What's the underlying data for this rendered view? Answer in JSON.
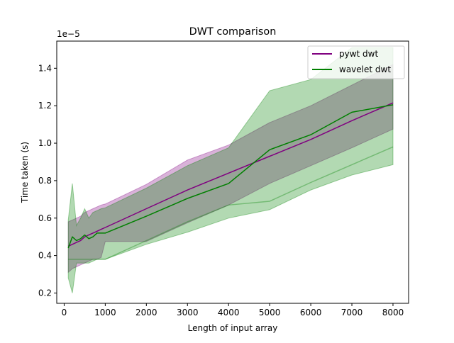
{
  "chart_data": {
    "type": "line",
    "title": "DWT comparison",
    "xlabel": "Length of input array",
    "ylabel": "Time taken (s)",
    "y_offset_label": "1e−5",
    "y_scale": 1e-05,
    "xlim": [
      -180,
      8380
    ],
    "ylim": [
      0.145,
      1.545
    ],
    "x_ticks": [
      0,
      1000,
      2000,
      3000,
      4000,
      5000,
      6000,
      7000,
      8000
    ],
    "y_ticks": [
      0.2,
      0.4,
      0.6,
      0.8,
      1.0,
      1.2,
      1.4
    ],
    "x_tick_labels": [
      "0",
      "1000",
      "2000",
      "3000",
      "4000",
      "5000",
      "6000",
      "7000",
      "8000"
    ],
    "y_tick_labels": [
      "0.2",
      "0.4",
      "0.6",
      "0.8",
      "1.0",
      "1.2",
      "1.4"
    ],
    "grid": false,
    "legend": "top-right",
    "x": [
      100,
      200,
      300,
      400,
      500,
      600,
      700,
      800,
      900,
      1000,
      2000,
      3000,
      4000,
      5000,
      6000,
      7000,
      8000
    ],
    "series": [
      {
        "name": "pywt dwt",
        "color": "#800080",
        "band_color": "#800080",
        "mean": [
          0.45,
          0.46,
          0.47,
          0.48,
          0.5,
          0.51,
          0.52,
          0.53,
          0.54,
          0.55,
          0.65,
          0.75,
          0.84,
          0.93,
          1.02,
          1.12,
          1.215
        ],
        "upper": [
          0.58,
          0.59,
          0.6,
          0.61,
          0.63,
          0.64,
          0.65,
          0.66,
          0.67,
          0.675,
          0.78,
          0.91,
          0.99,
          1.11,
          1.2,
          1.31,
          1.42
        ],
        "lower": [
          0.31,
          0.33,
          0.34,
          0.35,
          0.36,
          0.37,
          0.38,
          0.38,
          0.39,
          0.475,
          0.475,
          0.575,
          0.67,
          0.785,
          0.88,
          0.975,
          1.075
        ]
      },
      {
        "name": "wavelet dwt",
        "color": "#008000",
        "band_color": "#008000",
        "mean": [
          0.44,
          0.5,
          0.48,
          0.49,
          0.51,
          0.49,
          0.5,
          0.52,
          0.52,
          0.52,
          0.61,
          0.705,
          0.785,
          0.965,
          1.045,
          1.165,
          1.205
        ],
        "upper": [
          0.59,
          0.785,
          0.56,
          0.6,
          0.65,
          0.6,
          0.63,
          0.64,
          0.65,
          0.655,
          0.76,
          0.88,
          0.975,
          1.28,
          1.34,
          1.51,
          1.51
        ],
        "lower": [
          0.28,
          0.2,
          0.36,
          0.36,
          0.36,
          0.36,
          0.37,
          0.38,
          0.38,
          0.38,
          0.46,
          0.525,
          0.6,
          0.645,
          0.75,
          0.83,
          0.885
        ],
        "lower_trend": [
          0.38,
          0.38,
          0.38,
          0.38,
          0.38,
          0.38,
          0.38,
          0.38,
          0.38,
          0.38,
          0.48,
          0.58,
          0.67,
          0.69,
          0.79,
          0.885,
          0.98
        ]
      }
    ]
  }
}
